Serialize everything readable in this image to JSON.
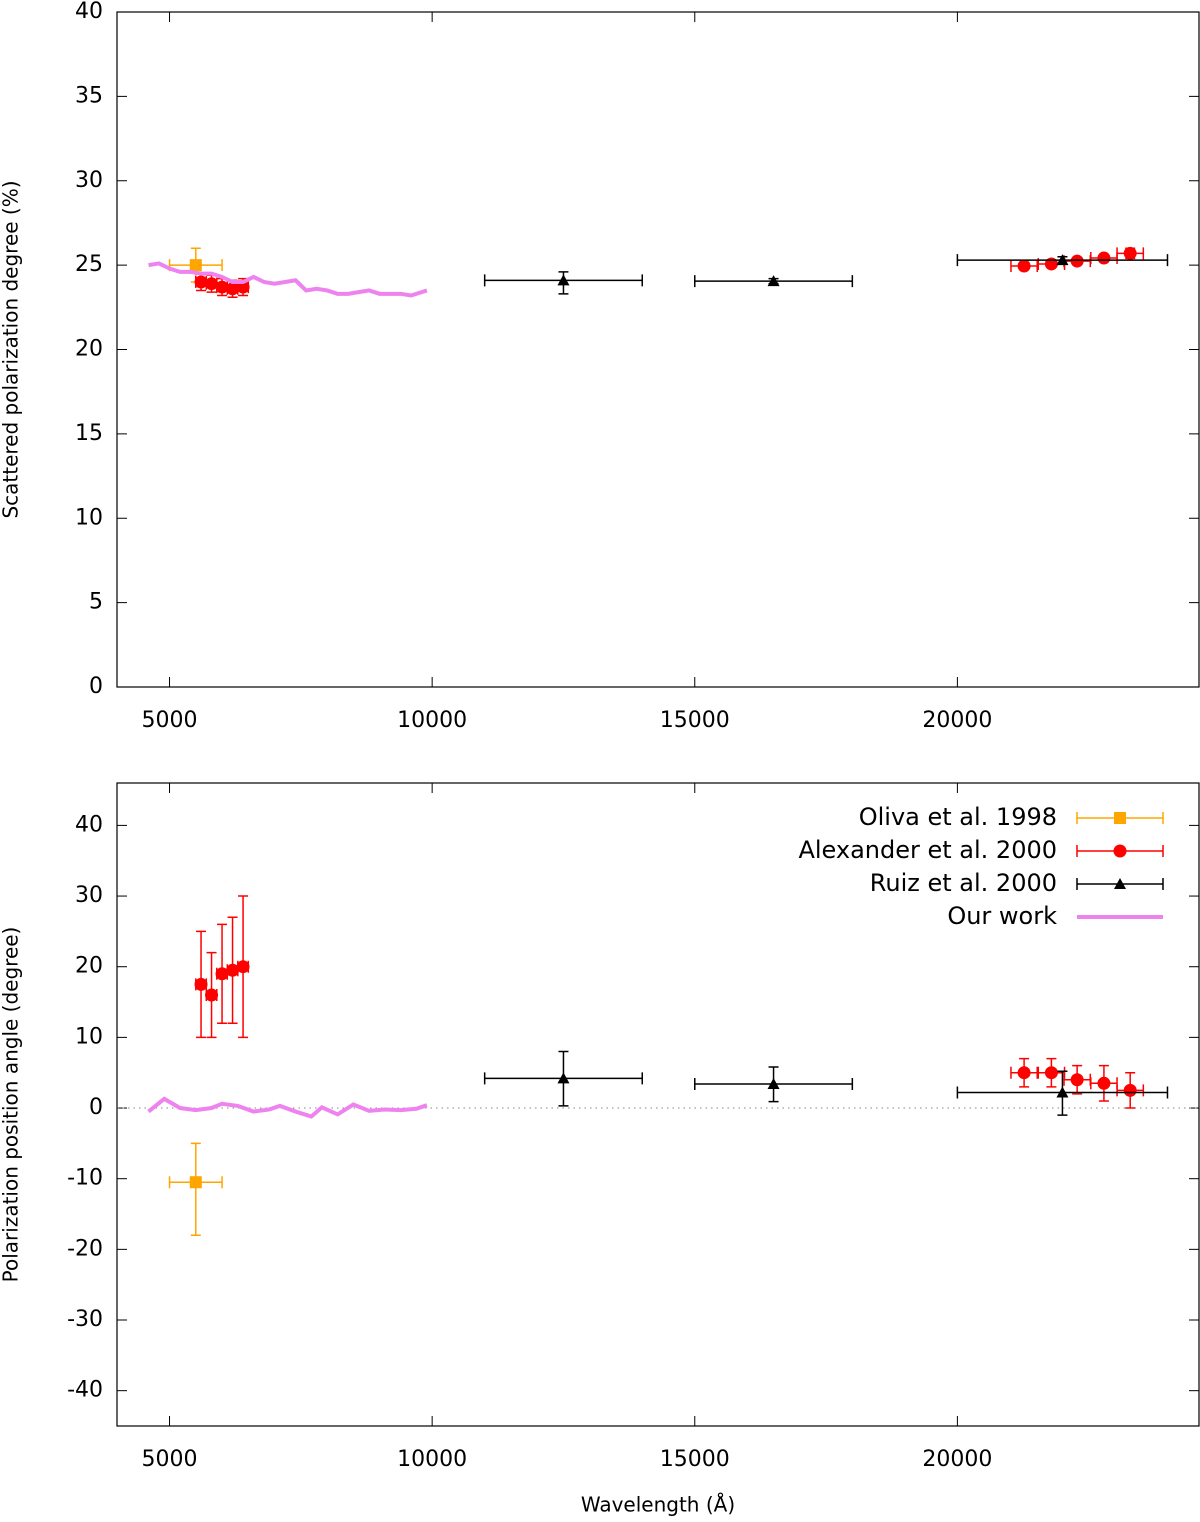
{
  "chart_data": [
    {
      "type": "scatter",
      "ylabel": "Scattered polarization degree (%)",
      "xlim": [
        4000,
        24600
      ],
      "xticks": [
        5000,
        10000,
        15000,
        20000
      ],
      "ylim": [
        0,
        40
      ],
      "yticks": [
        0,
        5,
        10,
        15,
        20,
        25,
        30,
        35,
        40
      ],
      "series": [
        {
          "color": "#ffa500",
          "marker": "square",
          "x": [
            5500
          ],
          "values": [
            25.0
          ],
          "x_low": [
            5000
          ],
          "x_high": [
            6000
          ],
          "y_low": [
            24.0
          ],
          "y_high": [
            26.0
          ]
        },
        {
          "color": "#ff0000",
          "marker": "circle",
          "x": [
            5600,
            5800,
            6000,
            6200,
            6400,
            21270,
            21790,
            22280,
            22790,
            23290
          ],
          "values": [
            24.0,
            23.9,
            23.7,
            23.6,
            23.7,
            24.95,
            25.07,
            25.24,
            25.42,
            25.7
          ],
          "x_low": [
            5500,
            5700,
            5900,
            6100,
            6300,
            21020,
            21540,
            22030,
            22540,
            23040
          ],
          "x_high": [
            5700,
            5900,
            6100,
            6300,
            6500,
            21520,
            22040,
            22530,
            23040,
            23540
          ],
          "y_low": [
            23.5,
            23.4,
            23.2,
            23.1,
            23.2,
            24.75,
            24.87,
            25.04,
            25.22,
            25.4
          ],
          "y_high": [
            24.5,
            24.4,
            24.2,
            24.1,
            24.2,
            25.15,
            25.27,
            25.44,
            25.62,
            26.0
          ]
        },
        {
          "color": "#000000",
          "marker": "triangle",
          "x": [
            12500,
            16500,
            22000
          ],
          "values": [
            24.1,
            24.05,
            25.3
          ],
          "x_low": [
            11000,
            15000,
            20000
          ],
          "x_high": [
            14000,
            18000,
            24000
          ],
          "y_low": [
            23.3,
            23.9,
            25.1
          ],
          "y_high": [
            24.6,
            24.2,
            25.5
          ]
        },
        {
          "color": "#ee82ee",
          "marker": "none",
          "line": true,
          "x": [
            4600,
            4800,
            5000,
            5200,
            5400,
            5600,
            5800,
            6000,
            6200,
            6400,
            6600,
            6800,
            7000,
            7200,
            7400,
            7600,
            7800,
            8000,
            8200,
            8400,
            8600,
            8800,
            9000,
            9200,
            9400,
            9600,
            9800,
            9900
          ],
          "values": [
            25.0,
            25.1,
            24.8,
            24.6,
            24.6,
            24.5,
            24.5,
            24.3,
            24.0,
            24.0,
            24.3,
            24.0,
            23.9,
            24.0,
            24.1,
            23.5,
            23.6,
            23.5,
            23.3,
            23.3,
            23.4,
            23.5,
            23.3,
            23.3,
            23.3,
            23.2,
            23.4,
            23.5
          ]
        }
      ]
    },
    {
      "type": "scatter",
      "ylabel": "Polarization position angle (degree)",
      "xlabel": "Wavelength (Å)",
      "xlim": [
        4000,
        24600
      ],
      "xticks": [
        5000,
        10000,
        15000,
        20000
      ],
      "ylim": [
        -45,
        46
      ],
      "yticks": [
        -40,
        -30,
        -20,
        -10,
        0,
        10,
        20,
        30,
        40
      ],
      "zero_line": true,
      "legend": "upper right",
      "series": [
        {
          "name": "Oliva et al. 1998",
          "color": "#ffa500",
          "marker": "square",
          "x": [
            5500
          ],
          "values": [
            -10.5
          ],
          "x_low": [
            5000
          ],
          "x_high": [
            6000
          ],
          "y_low": [
            -18
          ],
          "y_high": [
            -5
          ]
        },
        {
          "name": "Alexander et al. 2000",
          "color": "#ff0000",
          "marker": "circle",
          "x": [
            5600,
            5800,
            6000,
            6200,
            6400,
            21270,
            21790,
            22280,
            22790,
            23290
          ],
          "values": [
            17.5,
            16,
            19,
            19.5,
            20,
            5,
            5,
            4,
            3.5,
            2.5
          ],
          "x_low": [
            5500,
            5700,
            5900,
            6100,
            6300,
            21020,
            21540,
            22030,
            22540,
            23040
          ],
          "x_high": [
            5700,
            5900,
            6100,
            6300,
            6500,
            21520,
            22040,
            22530,
            23040,
            23540
          ],
          "y_low": [
            10,
            10,
            12,
            12,
            10,
            3,
            3,
            2,
            1,
            0
          ],
          "y_high": [
            25,
            22,
            26,
            27,
            30,
            7,
            7,
            6,
            6,
            5
          ]
        },
        {
          "name": "Ruiz et al. 2000",
          "color": "#000000",
          "marker": "triangle",
          "x": [
            12500,
            16500,
            22000
          ],
          "values": [
            4.2,
            3.4,
            2.2
          ],
          "x_low": [
            11000,
            15000,
            20000
          ],
          "x_high": [
            14000,
            18000,
            24000
          ],
          "y_low": [
            0.3,
            0.9,
            -1
          ],
          "y_high": [
            8,
            5.8,
            5.2
          ]
        },
        {
          "name": "Our work",
          "color": "#ee82ee",
          "marker": "none",
          "line": true,
          "x": [
            4600,
            4900,
            5200,
            5500,
            5800,
            6000,
            6300,
            6600,
            6900,
            7100,
            7400,
            7700,
            7900,
            8200,
            8500,
            8800,
            9100,
            9400,
            9700,
            9900
          ],
          "values": [
            -0.5,
            1.3,
            0.0,
            -0.3,
            0.0,
            0.6,
            0.3,
            -0.5,
            -0.2,
            0.3,
            -0.5,
            -1.2,
            0.1,
            -0.9,
            0.5,
            -0.4,
            -0.2,
            -0.3,
            -0.1,
            0.4
          ]
        }
      ]
    }
  ]
}
